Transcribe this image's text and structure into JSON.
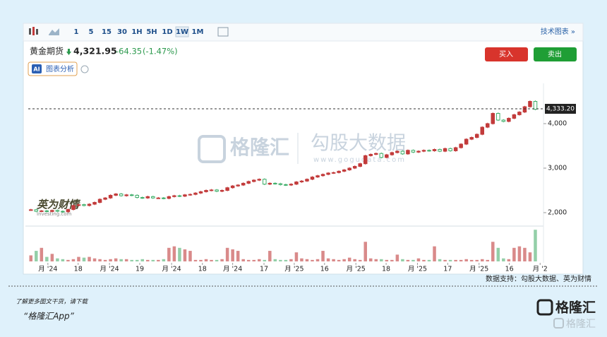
{
  "toolbar": {
    "intervals": [
      "1",
      "5",
      "15",
      "30",
      "1H",
      "5H",
      "1D",
      "1W",
      "1M"
    ],
    "active_interval": 7,
    "technical_link": "技术图表 »"
  },
  "quote": {
    "name": "黄金期货",
    "price": "4,321.95",
    "change": "-64.35",
    "change_pct": "(-1.47%)"
  },
  "ai_badge": "AI",
  "analysis": "图表分析",
  "buttons": {
    "buy": "买入",
    "sell": "卖出"
  },
  "watermarks": {
    "brand": "格隆汇",
    "data_brand": "勾股大数据",
    "data_url": "www.gogudata.com",
    "partner": "英为财情",
    "partner_en": "Investing.com"
  },
  "chart_data": {
    "type": "candlestick",
    "up_color": "#c23b3b",
    "down_color": "#3fae6a",
    "volume_up_color": "#d98a8a",
    "volume_down_color": "#93cfa8",
    "ohlc": [
      [
        2060,
        2085,
        2040,
        2065
      ],
      [
        2065,
        2085,
        2010,
        2030
      ],
      [
        2030,
        2060,
        2010,
        2040
      ],
      [
        2040,
        2060,
        2005,
        2025
      ],
      [
        2025,
        2070,
        2005,
        2050
      ],
      [
        2050,
        2070,
        2010,
        2030
      ],
      [
        2030,
        2050,
        2000,
        2020
      ],
      [
        2020,
        2090,
        2000,
        2070
      ],
      [
        2070,
        2180,
        2050,
        2160
      ],
      [
        2160,
        2200,
        2140,
        2180
      ],
      [
        2180,
        2200,
        2140,
        2160
      ],
      [
        2160,
        2210,
        2140,
        2190
      ],
      [
        2190,
        2250,
        2170,
        2230
      ],
      [
        2230,
        2320,
        2210,
        2300
      ],
      [
        2300,
        2350,
        2280,
        2330
      ],
      [
        2330,
        2410,
        2310,
        2390
      ],
      [
        2390,
        2440,
        2370,
        2420
      ],
      [
        2420,
        2440,
        2360,
        2380
      ],
      [
        2380,
        2420,
        2360,
        2400
      ],
      [
        2400,
        2420,
        2370,
        2390
      ],
      [
        2390,
        2410,
        2320,
        2340
      ],
      [
        2340,
        2360,
        2310,
        2330
      ],
      [
        2330,
        2380,
        2310,
        2360
      ],
      [
        2360,
        2380,
        2310,
        2330
      ],
      [
        2330,
        2350,
        2310,
        2330
      ],
      [
        2330,
        2350,
        2300,
        2320
      ],
      [
        2320,
        2380,
        2300,
        2360
      ],
      [
        2360,
        2400,
        2340,
        2380
      ],
      [
        2380,
        2400,
        2350,
        2370
      ],
      [
        2370,
        2420,
        2350,
        2400
      ],
      [
        2400,
        2430,
        2380,
        2410
      ],
      [
        2410,
        2460,
        2390,
        2440
      ],
      [
        2440,
        2490,
        2420,
        2470
      ],
      [
        2470,
        2520,
        2450,
        2500
      ],
      [
        2500,
        2530,
        2480,
        2510
      ],
      [
        2510,
        2530,
        2460,
        2480
      ],
      [
        2480,
        2520,
        2460,
        2500
      ],
      [
        2500,
        2580,
        2480,
        2560
      ],
      [
        2560,
        2620,
        2540,
        2600
      ],
      [
        2600,
        2640,
        2580,
        2620
      ],
      [
        2620,
        2680,
        2600,
        2660
      ],
      [
        2660,
        2720,
        2640,
        2700
      ],
      [
        2700,
        2750,
        2680,
        2730
      ],
      [
        2730,
        2770,
        2710,
        2750
      ],
      [
        2750,
        2770,
        2620,
        2640
      ],
      [
        2640,
        2680,
        2620,
        2660
      ],
      [
        2660,
        2680,
        2630,
        2650
      ],
      [
        2650,
        2670,
        2610,
        2630
      ],
      [
        2630,
        2650,
        2600,
        2620
      ],
      [
        2620,
        2660,
        2600,
        2640
      ],
      [
        2640,
        2710,
        2620,
        2690
      ],
      [
        2690,
        2730,
        2670,
        2710
      ],
      [
        2710,
        2770,
        2690,
        2750
      ],
      [
        2750,
        2820,
        2730,
        2800
      ],
      [
        2800,
        2850,
        2780,
        2830
      ],
      [
        2830,
        2880,
        2810,
        2860
      ],
      [
        2860,
        2910,
        2840,
        2890
      ],
      [
        2890,
        2920,
        2870,
        2900
      ],
      [
        2900,
        2950,
        2880,
        2930
      ],
      [
        2930,
        2980,
        2910,
        2960
      ],
      [
        2960,
        3020,
        2940,
        3000
      ],
      [
        3000,
        3060,
        2980,
        3040
      ],
      [
        3040,
        3120,
        3020,
        3100
      ],
      [
        3100,
        3300,
        3080,
        3280
      ],
      [
        3280,
        3330,
        3260,
        3310
      ],
      [
        3310,
        3350,
        3290,
        3330
      ],
      [
        3330,
        3350,
        3220,
        3240
      ],
      [
        3240,
        3320,
        3220,
        3300
      ],
      [
        3300,
        3370,
        3280,
        3350
      ],
      [
        3350,
        3400,
        3330,
        3380
      ],
      [
        3380,
        3400,
        3300,
        3320
      ],
      [
        3320,
        3420,
        3300,
        3400
      ],
      [
        3400,
        3420,
        3340,
        3360
      ],
      [
        3360,
        3400,
        3340,
        3380
      ],
      [
        3380,
        3420,
        3360,
        3400
      ],
      [
        3400,
        3420,
        3370,
        3390
      ],
      [
        3390,
        3440,
        3370,
        3420
      ],
      [
        3420,
        3440,
        3360,
        3380
      ],
      [
        3380,
        3460,
        3360,
        3440
      ],
      [
        3440,
        3460,
        3370,
        3390
      ],
      [
        3390,
        3480,
        3370,
        3460
      ],
      [
        3460,
        3560,
        3440,
        3540
      ],
      [
        3540,
        3670,
        3520,
        3650
      ],
      [
        3650,
        3710,
        3630,
        3690
      ],
      [
        3690,
        3780,
        3670,
        3760
      ],
      [
        3760,
        3940,
        3740,
        3920
      ],
      [
        3920,
        4020,
        3900,
        4000
      ],
      [
        4000,
        4250,
        3980,
        4230
      ],
      [
        4230,
        4250,
        4060,
        4080
      ],
      [
        4080,
        4100,
        4030,
        4050
      ],
      [
        4050,
        4140,
        4030,
        4120
      ],
      [
        4120,
        4220,
        4100,
        4200
      ],
      [
        4200,
        4280,
        4180,
        4260
      ],
      [
        4260,
        4400,
        4240,
        4380
      ],
      [
        4380,
        4520,
        4360,
        4500
      ],
      [
        4500,
        4520,
        4302,
        4322
      ]
    ],
    "volume": [
      8,
      14,
      18,
      6,
      10,
      4,
      3,
      2,
      3,
      6,
      5,
      6,
      4,
      3,
      2,
      3,
      4,
      3,
      3,
      2,
      2,
      3,
      2,
      2,
      2,
      3,
      18,
      20,
      18,
      16,
      14,
      2,
      2,
      3,
      2,
      2,
      3,
      18,
      16,
      14,
      3,
      2,
      2,
      3,
      2,
      14,
      3,
      2,
      2,
      3,
      12,
      4,
      3,
      2,
      3,
      14,
      4,
      3,
      2,
      3,
      5,
      3,
      2,
      26,
      4,
      3,
      3,
      2,
      2,
      9,
      3,
      2,
      2,
      4,
      2,
      2,
      20,
      3,
      2,
      2,
      2,
      2,
      3,
      2,
      2,
      3,
      2,
      26,
      18,
      4,
      3,
      18,
      20,
      18,
      12,
      42
    ],
    "volume_lim": [
      0,
      45
    ],
    "xlim": [
      -0.5,
      96
    ],
    "xticks": [
      {
        "value": 3.2,
        "label": "月 '24"
      },
      {
        "value": 8.9,
        "label": "18"
      },
      {
        "value": 14.8,
        "label": "月 '24"
      },
      {
        "value": 20.5,
        "label": "19"
      },
      {
        "value": 26.5,
        "label": "月 '24"
      },
      {
        "value": 32.3,
        "label": "18"
      },
      {
        "value": 38,
        "label": "月 '24"
      },
      {
        "value": 43.9,
        "label": "17"
      },
      {
        "value": 49.6,
        "label": "月 '25"
      },
      {
        "value": 55.3,
        "label": "16"
      },
      {
        "value": 61.2,
        "label": "月 '25"
      },
      {
        "value": 66.9,
        "label": "18"
      },
      {
        "value": 72.8,
        "label": "月 '25"
      },
      {
        "value": 78.5,
        "label": "17"
      },
      {
        "value": 84.4,
        "label": "月 '25"
      },
      {
        "value": 90.1,
        "label": "16"
      },
      {
        "value": 95.9,
        "label": "月 '2"
      }
    ],
    "ylim": [
      1698,
      4905
    ],
    "yticks": [
      {
        "value": 2000,
        "label": "2,000"
      },
      {
        "value": 3000,
        "label": "3,000"
      },
      {
        "value": 4000,
        "label": "4,000"
      }
    ],
    "price_line": {
      "value": 4333.2,
      "label": "4,333.20"
    }
  },
  "source": "数据支持：勾股大数据、英为财情",
  "footer": {
    "prompt": "了解更多图文干货，请下载",
    "app": "“格隆汇App”",
    "logo": "格隆汇",
    "logo_watermark": "格隆汇"
  }
}
